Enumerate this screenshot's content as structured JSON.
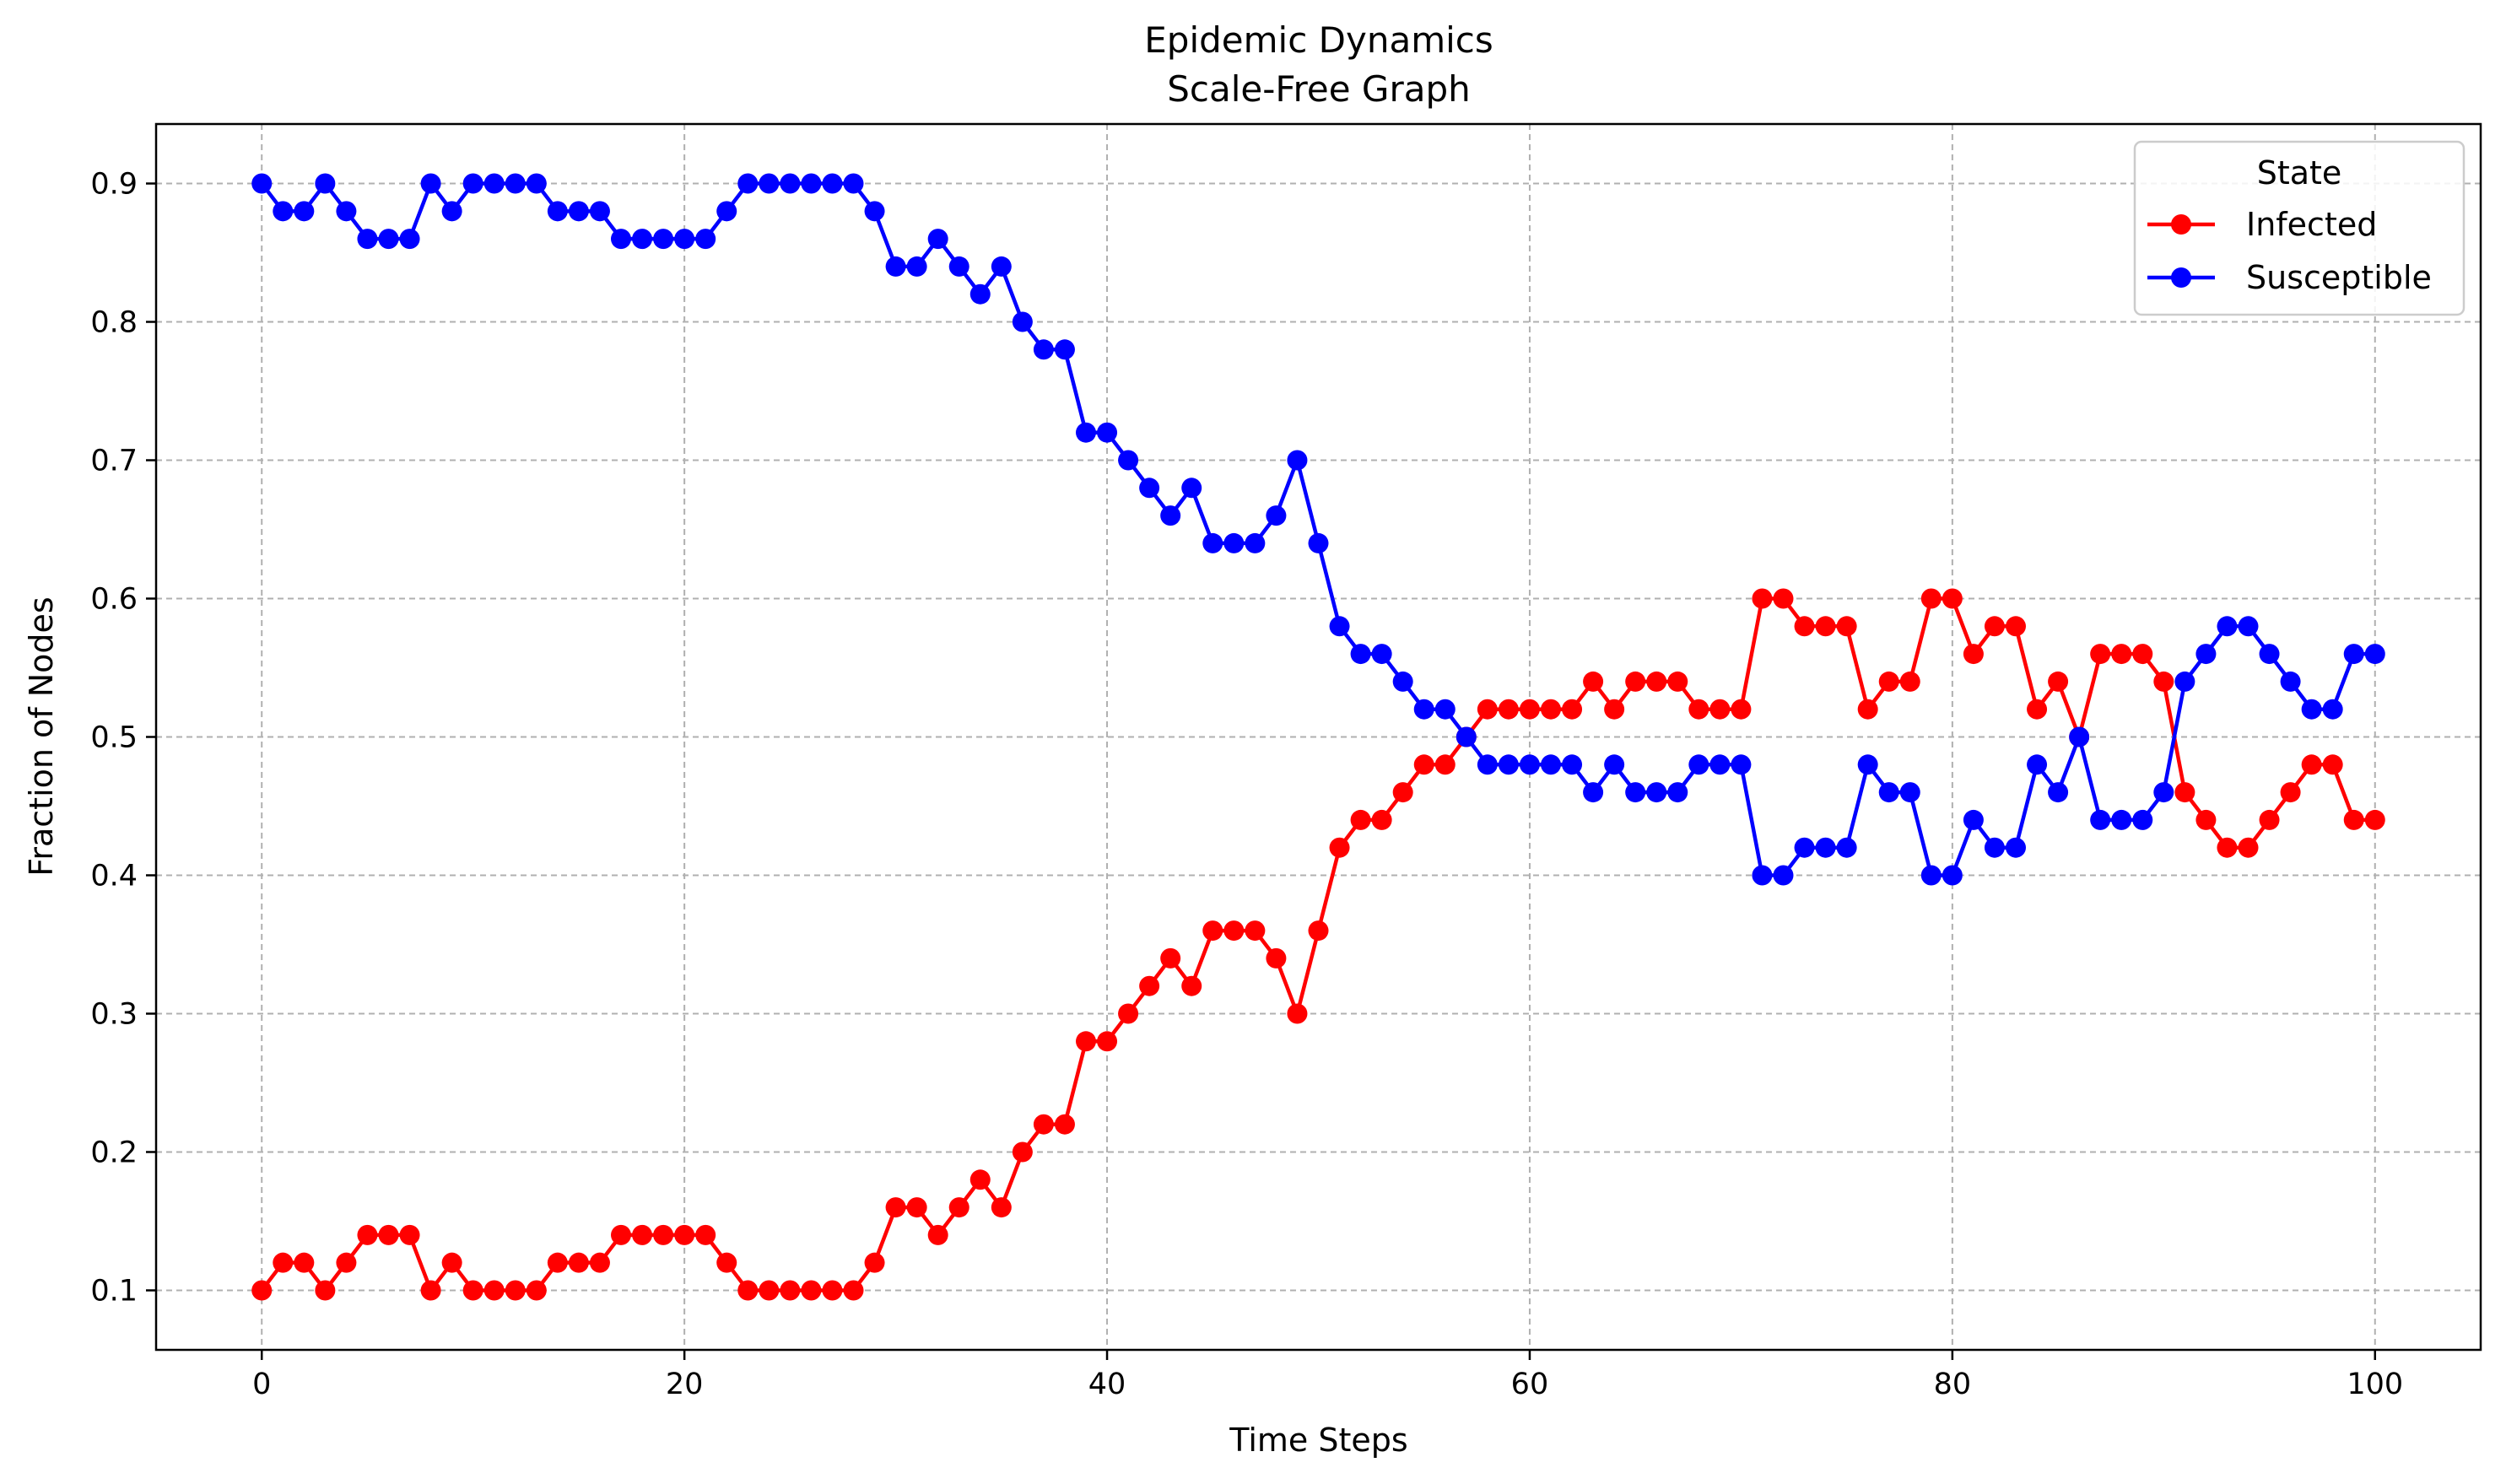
{
  "chart_data": {
    "type": "line",
    "title": "Epidemic Dynamics",
    "subtitle": "Scale-Free Graph",
    "xlabel": "Time Steps",
    "ylabel": "Fraction of Nodes",
    "xlim": [
      -5,
      105
    ],
    "ylim": [
      0.057,
      0.943
    ],
    "xticks": [
      0,
      20,
      40,
      60,
      80,
      100
    ],
    "yticks": [
      0.1,
      0.2,
      0.3,
      0.4,
      0.5,
      0.6,
      0.7,
      0.8,
      0.9
    ],
    "grid": true,
    "legend": {
      "title": "State",
      "position": "top-right"
    },
    "x": [
      0,
      1,
      2,
      3,
      4,
      5,
      6,
      7,
      8,
      9,
      10,
      11,
      12,
      13,
      14,
      15,
      16,
      17,
      18,
      19,
      20,
      21,
      22,
      23,
      24,
      25,
      26,
      27,
      28,
      29,
      30,
      31,
      32,
      33,
      34,
      35,
      36,
      37,
      38,
      39,
      40,
      41,
      42,
      43,
      44,
      45,
      46,
      47,
      48,
      49,
      50,
      51,
      52,
      53,
      54,
      55,
      56,
      57,
      58,
      59,
      60,
      61,
      62,
      63,
      64,
      65,
      66,
      67,
      68,
      69,
      70,
      71,
      72,
      73,
      74,
      75,
      76,
      77,
      78,
      79,
      80,
      81,
      82,
      83,
      84,
      85,
      86,
      87,
      88,
      89,
      90,
      91,
      92,
      93,
      94,
      95,
      96,
      97,
      98,
      99,
      100
    ],
    "series": [
      {
        "name": "Infected",
        "color": "#ff0000",
        "values": [
          0.1,
          0.12,
          0.12,
          0.1,
          0.12,
          0.14,
          0.14,
          0.14,
          0.1,
          0.12,
          0.1,
          0.1,
          0.1,
          0.1,
          0.12,
          0.12,
          0.12,
          0.14,
          0.14,
          0.14,
          0.14,
          0.14,
          0.12,
          0.1,
          0.1,
          0.1,
          0.1,
          0.1,
          0.1,
          0.12,
          0.16,
          0.16,
          0.14,
          0.16,
          0.18,
          0.16,
          0.2,
          0.22,
          0.22,
          0.28,
          0.28,
          0.3,
          0.32,
          0.34,
          0.32,
          0.36,
          0.36,
          0.36,
          0.34,
          0.3,
          0.36,
          0.42,
          0.44,
          0.44,
          0.46,
          0.48,
          0.48,
          0.5,
          0.52,
          0.52,
          0.52,
          0.52,
          0.52,
          0.54,
          0.52,
          0.54,
          0.54,
          0.54,
          0.52,
          0.52,
          0.52,
          0.6,
          0.6,
          0.58,
          0.58,
          0.58,
          0.52,
          0.54,
          0.54,
          0.6,
          0.6,
          0.56,
          0.58,
          0.58,
          0.52,
          0.54,
          0.5,
          0.56,
          0.56,
          0.56,
          0.54,
          0.46,
          0.44,
          0.42,
          0.42,
          0.44,
          0.46,
          0.48,
          0.48,
          0.44,
          0.44
        ]
      },
      {
        "name": "Susceptible",
        "color": "#0000ff",
        "values": [
          0.9,
          0.88,
          0.88,
          0.9,
          0.88,
          0.86,
          0.86,
          0.86,
          0.9,
          0.88,
          0.9,
          0.9,
          0.9,
          0.9,
          0.88,
          0.88,
          0.88,
          0.86,
          0.86,
          0.86,
          0.86,
          0.86,
          0.88,
          0.9,
          0.9,
          0.9,
          0.9,
          0.9,
          0.9,
          0.88,
          0.84,
          0.84,
          0.86,
          0.84,
          0.82,
          0.84,
          0.8,
          0.78,
          0.78,
          0.72,
          0.72,
          0.7,
          0.68,
          0.66,
          0.68,
          0.64,
          0.64,
          0.64,
          0.66,
          0.7,
          0.64,
          0.58,
          0.56,
          0.56,
          0.54,
          0.52,
          0.52,
          0.5,
          0.48,
          0.48,
          0.48,
          0.48,
          0.48,
          0.46,
          0.48,
          0.46,
          0.46,
          0.46,
          0.48,
          0.48,
          0.48,
          0.4,
          0.4,
          0.42,
          0.42,
          0.42,
          0.48,
          0.46,
          0.46,
          0.4,
          0.4,
          0.44,
          0.42,
          0.42,
          0.48,
          0.46,
          0.5,
          0.44,
          0.44,
          0.44,
          0.46,
          0.54,
          0.56,
          0.58,
          0.58,
          0.56,
          0.54,
          0.52,
          0.52,
          0.56,
          0.56
        ]
      }
    ]
  }
}
